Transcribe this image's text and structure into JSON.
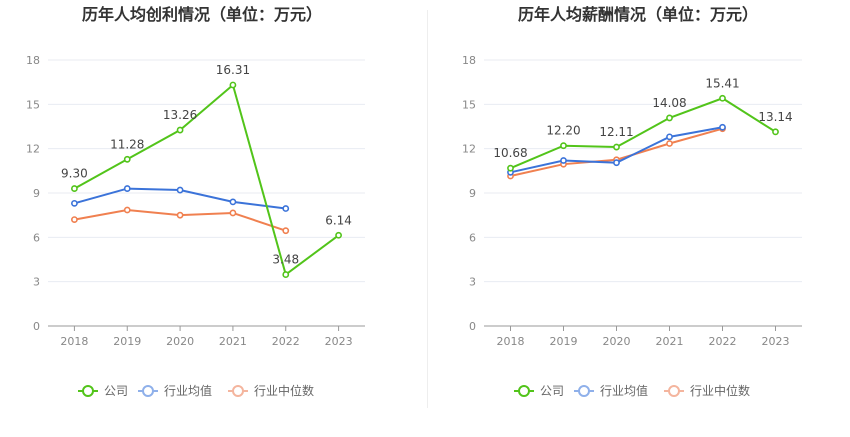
{
  "chart_data": [
    {
      "type": "line",
      "title": "历年人均创利情况（单位：万元）",
      "categories": [
        "2018",
        "2019",
        "2020",
        "2021",
        "2022",
        "2023"
      ],
      "ylim": [
        0,
        18
      ],
      "yticks": [
        "0",
        "3",
        "6",
        "9",
        "12",
        "15",
        "18"
      ],
      "grid": true,
      "legend_position": "bottom",
      "series": [
        {
          "name": "公司",
          "color": "#52c41a",
          "values": [
            9.3,
            11.28,
            13.26,
            16.31,
            3.48,
            6.14
          ],
          "labels": [
            "9.30",
            "11.28",
            "13.26",
            "16.31",
            "3.48",
            "6.14"
          ]
        },
        {
          "name": "行业均值",
          "color": "#3b73d9",
          "values": [
            8.3,
            9.3,
            9.2,
            8.4,
            7.95,
            null
          ]
        },
        {
          "name": "行业中位数",
          "color": "#f08050",
          "values": [
            7.2,
            7.85,
            7.5,
            7.65,
            6.45,
            null
          ]
        }
      ]
    },
    {
      "type": "line",
      "title": "历年人均薪酬情况（单位：万元）",
      "categories": [
        "2018",
        "2019",
        "2020",
        "2021",
        "2022",
        "2023"
      ],
      "ylim": [
        0,
        18
      ],
      "yticks": [
        "0",
        "3",
        "6",
        "9",
        "12",
        "15",
        "18"
      ],
      "grid": true,
      "legend_position": "bottom",
      "series": [
        {
          "name": "公司",
          "color": "#52c41a",
          "values": [
            10.68,
            12.2,
            12.11,
            14.08,
            15.41,
            13.14
          ],
          "labels": [
            "10.68",
            "12.20",
            "12.11",
            "14.08",
            "15.41",
            "13.14"
          ]
        },
        {
          "name": "行业均值",
          "color": "#3b73d9",
          "values": [
            10.4,
            11.2,
            11.05,
            12.8,
            13.45,
            null
          ]
        },
        {
          "name": "行业中位数",
          "color": "#f08050",
          "values": [
            10.15,
            10.95,
            11.25,
            12.35,
            13.35,
            null
          ]
        }
      ]
    }
  ],
  "legend_colors": {
    "公司": "#52c41a",
    "行业均值": "#8fb0ea",
    "行业中位数": "#f4b59e"
  }
}
